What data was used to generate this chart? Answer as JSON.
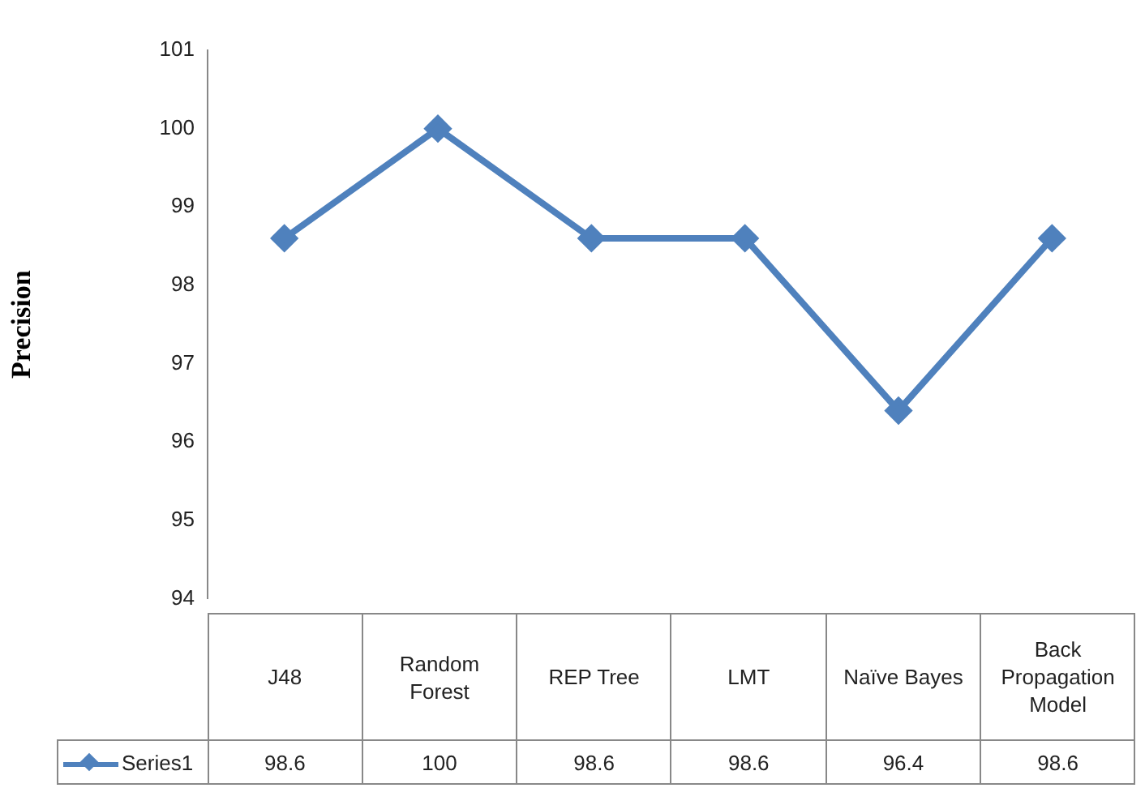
{
  "chart_data": {
    "type": "line",
    "ylabel": "Precision",
    "categories": [
      "J48",
      "Random Forest",
      "REP Tree",
      "LMT",
      "Naïve Bayes",
      "Back Propagation Model"
    ],
    "series": [
      {
        "name": "Series1",
        "color": "#4f81bd",
        "values": [
          98.6,
          100,
          98.6,
          98.6,
          96.4,
          98.6
        ]
      }
    ],
    "ylim": [
      94,
      101
    ],
    "yticks": [
      94,
      95,
      96,
      97,
      98,
      99,
      100,
      101
    ],
    "grid": false,
    "legend": "bottom",
    "marker": "diamond",
    "line_style": "solid",
    "data_labels": true
  }
}
